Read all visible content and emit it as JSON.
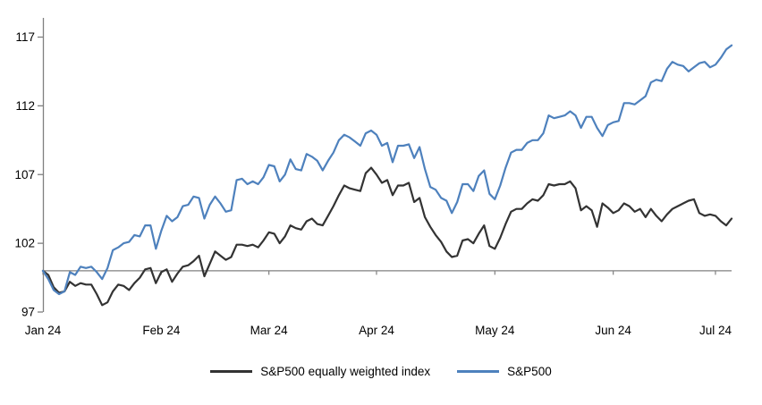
{
  "chart_data": {
    "type": "line",
    "title": "",
    "xlabel": "",
    "ylabel": "",
    "frequency": "daily",
    "grid": "off",
    "legend_position": "bottom-center",
    "y_ticks": [
      97,
      102,
      107,
      112,
      117
    ],
    "ylim": [
      97,
      118.3
    ],
    "baseline_value": 100,
    "x_tick_labels": [
      "Jan 24",
      "Feb 24",
      "Mar 24",
      "Apr 24",
      "May 24",
      "Jun 24",
      "Jul 24"
    ],
    "x_tick_indices": [
      0,
      22,
      42,
      62,
      84,
      106,
      125
    ],
    "colors": {
      "axis": "#808080",
      "text": "#000000",
      "background": "#ffffff"
    },
    "series": [
      {
        "name": "S&P500 equally weighted index",
        "color": "#333333",
        "values": [
          100.0,
          99.7,
          98.8,
          98.4,
          98.5,
          99.2,
          98.9,
          99.1,
          99.0,
          99.0,
          98.3,
          97.5,
          97.7,
          98.5,
          99.0,
          98.9,
          98.6,
          99.1,
          99.5,
          100.1,
          100.2,
          99.1,
          99.9,
          100.1,
          99.2,
          99.8,
          100.3,
          100.4,
          100.7,
          101.1,
          99.6,
          100.5,
          101.4,
          101.1,
          100.8,
          101.0,
          101.9,
          101.9,
          101.8,
          101.9,
          101.7,
          102.2,
          102.8,
          102.7,
          102.0,
          102.5,
          103.3,
          103.1,
          103.0,
          103.6,
          103.8,
          103.4,
          103.3,
          104.0,
          104.7,
          105.5,
          106.2,
          106.0,
          105.9,
          105.8,
          107.1,
          107.5,
          107.0,
          106.4,
          106.6,
          105.5,
          106.2,
          106.2,
          106.4,
          105.0,
          105.3,
          103.9,
          103.2,
          102.6,
          102.1,
          101.4,
          101.0,
          101.1,
          102.2,
          102.3,
          102.0,
          102.7,
          103.3,
          101.8,
          101.6,
          102.4,
          103.4,
          104.3,
          104.5,
          104.5,
          104.9,
          105.2,
          105.1,
          105.5,
          106.3,
          106.2,
          106.3,
          106.3,
          106.5,
          106.0,
          104.4,
          104.7,
          104.4,
          103.2,
          104.9,
          104.6,
          104.2,
          104.4,
          104.9,
          104.7,
          104.3,
          104.5,
          103.9,
          104.5,
          104.0,
          103.6,
          104.1,
          104.5,
          104.7,
          104.9,
          105.1,
          105.2,
          104.2,
          104.0,
          104.1,
          104.0,
          103.6,
          103.3,
          103.8
        ]
      },
      {
        "name": "S&P500",
        "color": "#4e81bd",
        "values": [
          100.0,
          99.4,
          98.6,
          98.3,
          98.5,
          99.9,
          99.7,
          100.3,
          100.2,
          100.3,
          99.9,
          99.4,
          100.2,
          101.5,
          101.7,
          102.0,
          102.1,
          102.6,
          102.5,
          103.3,
          103.3,
          101.6,
          102.9,
          104.0,
          103.6,
          103.9,
          104.7,
          104.8,
          105.4,
          105.3,
          103.8,
          104.8,
          105.4,
          104.9,
          104.3,
          104.4,
          106.6,
          106.7,
          106.3,
          106.5,
          106.3,
          106.8,
          107.7,
          107.6,
          106.5,
          107.0,
          108.1,
          107.4,
          107.3,
          108.5,
          108.3,
          108.0,
          107.3,
          108.0,
          108.6,
          109.5,
          109.9,
          109.7,
          109.4,
          109.1,
          110.0,
          110.2,
          109.9,
          109.1,
          109.3,
          107.9,
          109.1,
          109.1,
          109.2,
          108.2,
          109.0,
          107.4,
          106.1,
          105.9,
          105.3,
          105.1,
          104.2,
          105.0,
          106.3,
          106.3,
          105.8,
          106.9,
          107.3,
          105.6,
          105.2,
          106.2,
          107.5,
          108.6,
          108.8,
          108.8,
          109.3,
          109.5,
          109.5,
          110.0,
          111.3,
          111.1,
          111.2,
          111.3,
          111.6,
          111.3,
          110.4,
          111.2,
          111.2,
          110.4,
          109.8,
          110.6,
          110.8,
          110.9,
          112.2,
          112.2,
          112.1,
          112.4,
          112.7,
          113.7,
          113.9,
          113.8,
          114.7,
          115.2,
          115.0,
          114.9,
          114.5,
          114.8,
          115.1,
          115.2,
          114.8,
          115.0,
          115.5,
          116.1,
          116.4
        ]
      }
    ]
  },
  "legend": {
    "items": [
      {
        "label": "S&P500 equally weighted index"
      },
      {
        "label": "S&P500"
      }
    ]
  }
}
